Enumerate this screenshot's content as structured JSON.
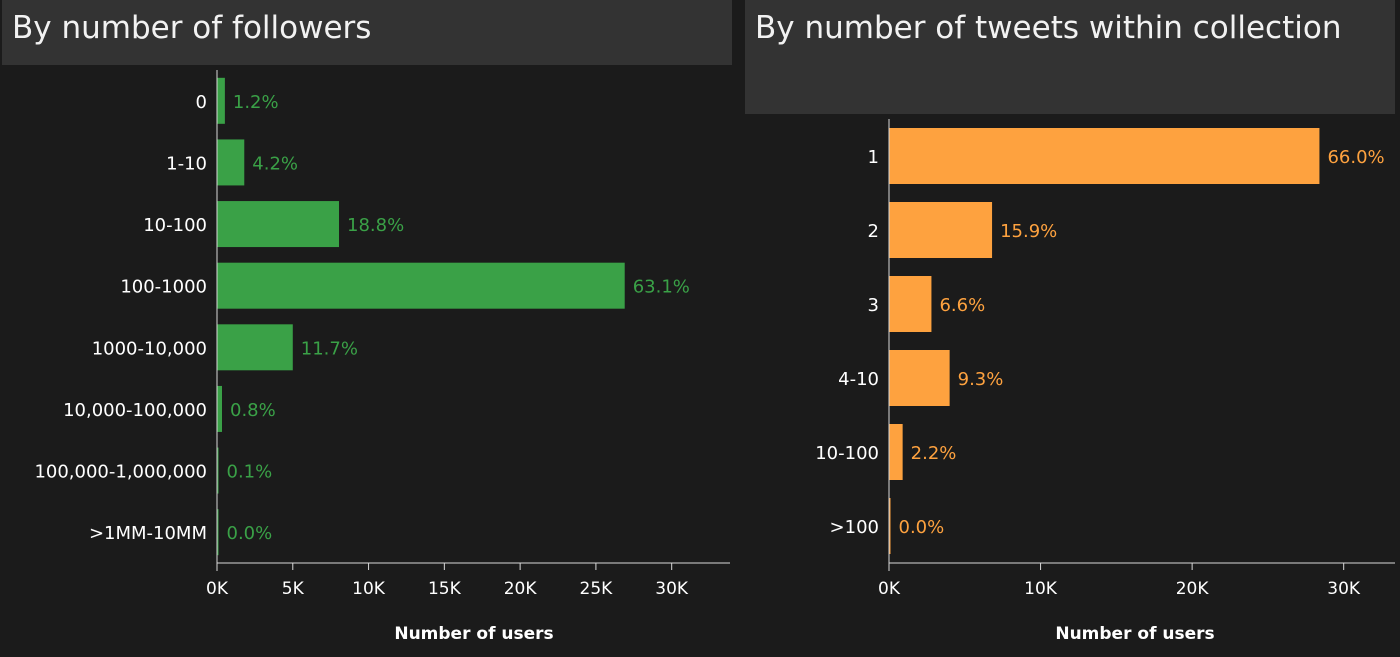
{
  "chart_data": [
    {
      "type": "bar",
      "orientation": "horizontal",
      "title": "By number of followers",
      "categories": [
        "0",
        "1-10",
        "10-100",
        "100-1000",
        "1000-10,000",
        "10,000-100,000",
        "100,000-1,000,000",
        ">1MM-10MM"
      ],
      "values": [
        520,
        1800,
        8050,
        26900,
        5000,
        330,
        45,
        5
      ],
      "value_labels": [
        "1.2%",
        "4.2%",
        "18.8%",
        "63.1%",
        "11.7%",
        "0.8%",
        "0.1%",
        "0.0%"
      ],
      "xlabel": "Number of users",
      "ylabel": "",
      "xlim": [
        0,
        32000
      ],
      "xticks": [
        0,
        5000,
        10000,
        15000,
        20000,
        25000,
        30000
      ],
      "xtick_labels": [
        "0K",
        "5K",
        "10K",
        "15K",
        "20K",
        "25K",
        "30K"
      ],
      "color": "#3aa147",
      "grid": false
    },
    {
      "type": "bar",
      "orientation": "horizontal",
      "title": "By number of tweets within collection",
      "categories": [
        "1",
        "2",
        "3",
        "4-10",
        "10-100",
        ">100"
      ],
      "values": [
        28400,
        6800,
        2800,
        4000,
        900,
        15
      ],
      "value_labels": [
        "66.0%",
        "15.9%",
        "6.6%",
        "9.3%",
        "2.2%",
        "0.0%"
      ],
      "xlabel": "Number of users",
      "ylabel": "",
      "xlim": [
        0,
        32000
      ],
      "xticks": [
        0,
        10000,
        20000,
        30000
      ],
      "xtick_labels": [
        "0K",
        "10K",
        "20K",
        "30K"
      ],
      "color": "#fea23f",
      "grid": false
    }
  ]
}
